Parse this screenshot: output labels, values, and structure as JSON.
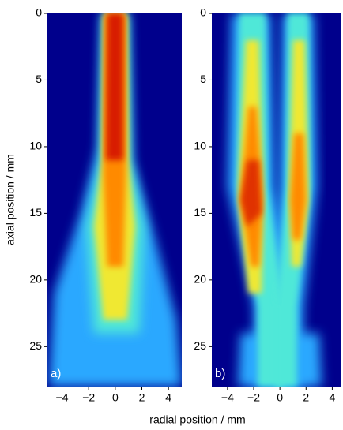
{
  "y_axis_label": "axial position / mm",
  "x_axis_label": "radial position / mm",
  "chart_data": [
    {
      "type": "image",
      "panel_label": "a)",
      "xlim": [
        -5.1,
        5.0
      ],
      "ylim": [
        28,
        0
      ],
      "xticks": [
        {
          "value": -4,
          "label": "−4"
        },
        {
          "value": -2,
          "label": "−2"
        },
        0,
        2,
        4
      ],
      "yticks": [
        0,
        5,
        10,
        15,
        20,
        25
      ]
    },
    {
      "type": "image",
      "panel_label": "b)",
      "xlim": [
        -5.2,
        4.7
      ],
      "ylim": [
        28,
        0
      ],
      "xticks": [
        {
          "value": -4,
          "label": "−4"
        },
        {
          "value": -2,
          "label": "−2"
        },
        0,
        2,
        4
      ],
      "yticks": [
        0,
        5,
        10,
        15,
        20,
        25
      ]
    }
  ]
}
